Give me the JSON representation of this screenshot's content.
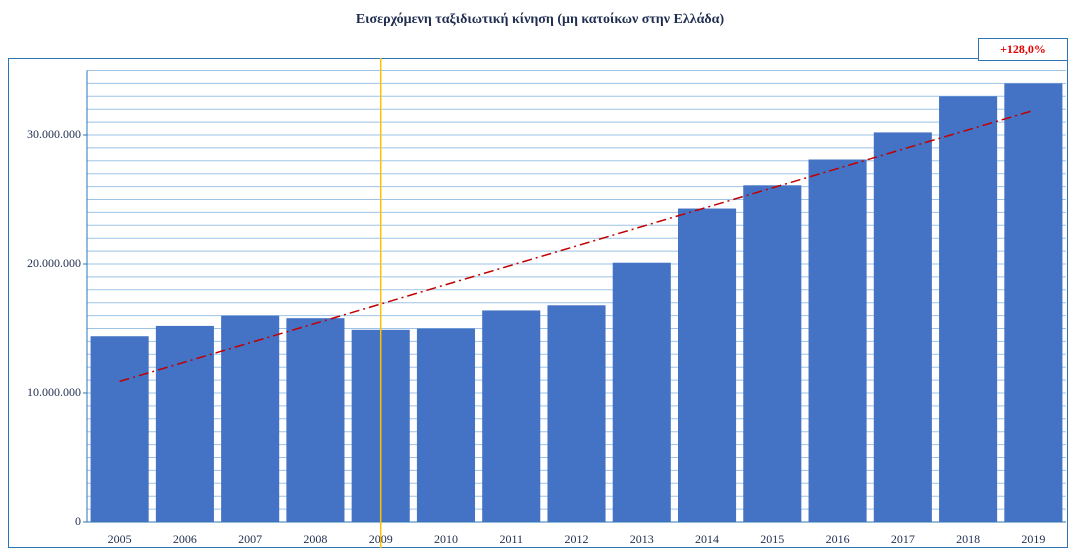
{
  "chart_data": {
    "type": "bar",
    "title": "Εισερχόμενη ταξιδιωτική κίνηση (μη κατοίκων στην Ελλάδα)",
    "annotation": "+128,0%",
    "categories": [
      "2005",
      "2006",
      "2007",
      "2008",
      "2009",
      "2010",
      "2011",
      "2012",
      "2013",
      "2014",
      "2015",
      "2016",
      "2017",
      "2018",
      "2019"
    ],
    "values": [
      14400000,
      15200000,
      16000000,
      15800000,
      14900000,
      15000000,
      16400000,
      16800000,
      20100000,
      24300000,
      26100000,
      28100000,
      30200000,
      33000000,
      34000000
    ],
    "color": "#4472c4",
    "ylim": [
      0,
      35000000
    ],
    "yticks": [
      0,
      {
        "value": 10000000,
        "label": "10.000.000"
      },
      {
        "value": 20000000,
        "label": "20.000.000"
      },
      {
        "value": 30000000,
        "label": "30.000.000"
      }
    ],
    "yminorticks": [
      1000000,
      2000000,
      3000000,
      4000000,
      5000000,
      6000000,
      7000000,
      8000000,
      9000000,
      10000000,
      11000000,
      12000000,
      13000000,
      14000000,
      15000000,
      16000000,
      17000000,
      18000000,
      19000000,
      20000000,
      21000000,
      22000000,
      23000000,
      24000000,
      25000000,
      26000000,
      27000000,
      28000000,
      29000000,
      30000000,
      31000000,
      32000000,
      33000000,
      34000000,
      35000000
    ],
    "grid": true,
    "trendline": {
      "color": "#c00000",
      "start": 10900000,
      "end": 31900000
    },
    "reference_index": 4,
    "reference_color": "#ffc000"
  }
}
